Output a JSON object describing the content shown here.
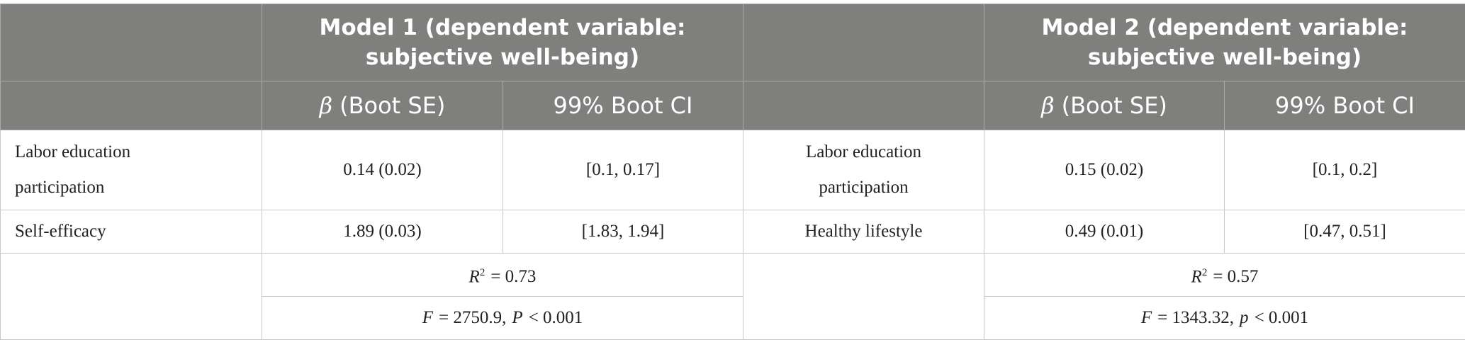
{
  "table": {
    "model_titles": [
      "Model 1 (dependent variable: subjective well-being)",
      "Model 2 (dependent variable: subjective well-being)"
    ],
    "subheaders": [
      {
        "symbol": "β",
        "text": "(Boot SE)"
      },
      "99% Boot CI",
      {
        "symbol": "β",
        "text": "(Boot SE)"
      },
      "99% Boot CI"
    ],
    "rows": [
      [
        "Labor education participation",
        "0.14 (0.02)",
        "[0.1, 0.17]",
        "Labor education participation",
        "0.15 (0.02)",
        "[0.1, 0.2]"
      ],
      [
        "Self-efficacy",
        "1.89 (0.03)",
        "[1.83, 1.94]",
        "Healthy lifestyle",
        "0.49 (0.01)",
        "[0.47, 0.51]"
      ]
    ],
    "fit": [
      {
        "r2": {
          "symbol": "R",
          "sup": "2",
          "text": "= 0.73"
        },
        "f": [
          "F",
          "= 2750.9,",
          "P",
          "< 0.001"
        ]
      },
      {
        "r2": {
          "symbol": "R",
          "sup": "2",
          "text": "= 0.57"
        },
        "f": [
          "F",
          "= 1343.32,",
          "p",
          "< 0.001"
        ]
      }
    ]
  }
}
